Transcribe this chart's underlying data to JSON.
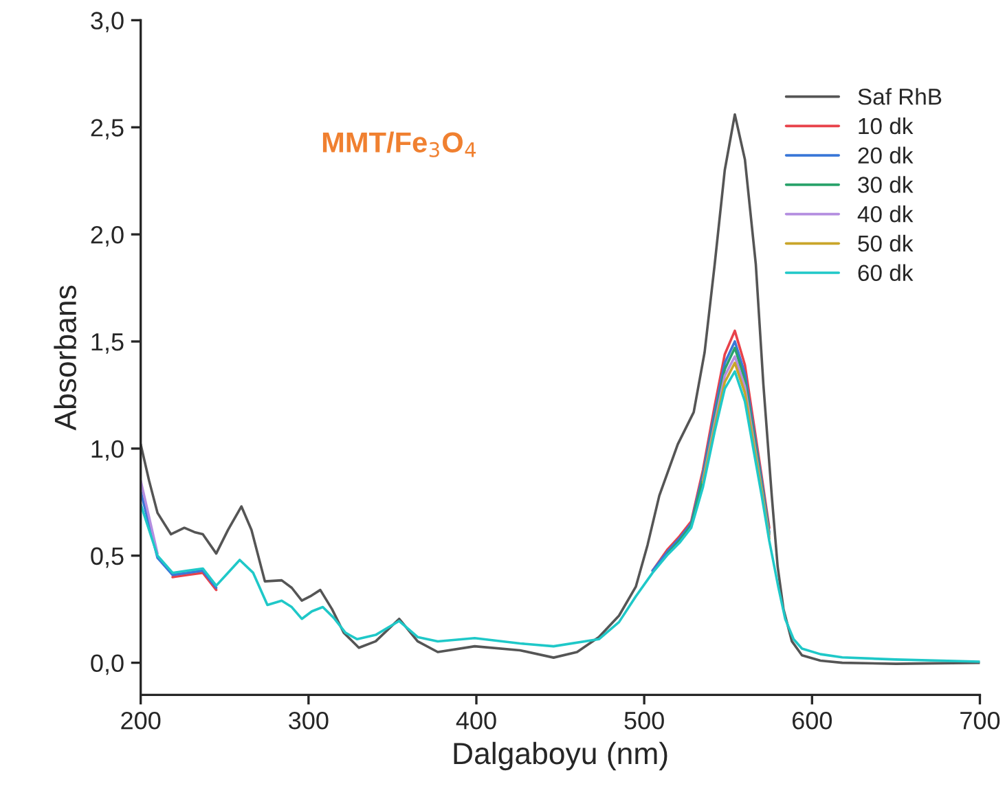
{
  "chart_data": {
    "type": "line",
    "xlabel": "Dalgaboyu (nm)",
    "ylabel": "Absorbans",
    "annotations": [
      "MMT/Fe$_{3}$O$_{4}$"
    ],
    "xlim": [
      200,
      700
    ],
    "xticks": [
      200,
      300,
      400,
      500,
      600,
      700
    ],
    "ylim": [
      -0.15,
      3.0
    ],
    "yticks": [
      {
        "value": 0,
        "label": "0,0"
      },
      {
        "value": 0.5,
        "label": "0,5"
      },
      {
        "value": 1.0,
        "label": "1,0"
      },
      {
        "value": 1.5,
        "label": "1,5"
      },
      {
        "value": 2.0,
        "label": "2,0"
      },
      {
        "value": 2.5,
        "label": "2,5"
      },
      {
        "value": 3.0,
        "label": "3,0"
      }
    ],
    "grid": false,
    "legend": "top right",
    "marker": "none",
    "line_style": "solid",
    "x": [
      200,
      210,
      219,
      228,
      237,
      245,
      252,
      259,
      267,
      275.5,
      284,
      290,
      296,
      302,
      308.5,
      315,
      322,
      329,
      340,
      354,
      365,
      377,
      399,
      426,
      446,
      473,
      485,
      495,
      505,
      514,
      521,
      528,
      535,
      542,
      548,
      554,
      560,
      565,
      570,
      574.5,
      580,
      584,
      589,
      594,
      605,
      618,
      650,
      700
    ],
    "series": [
      {
        "name": "Saf RhB",
        "color": "#555555",
        "x": [
          200,
          205,
          210,
          218,
          226,
          232,
          237,
          245,
          252,
          260,
          266,
          274,
          284,
          290,
          296,
          301,
          307,
          314,
          321,
          330,
          340,
          354,
          365,
          377,
          399,
          426,
          446,
          460,
          473,
          485,
          495,
          502,
          509,
          520,
          529.5,
          536,
          542,
          548,
          554,
          560,
          566.5,
          571,
          576,
          579.5,
          583,
          588,
          594,
          605,
          618,
          650,
          700
        ],
        "values": [
          1.02,
          0.85,
          0.7,
          0.6,
          0.63,
          0.61,
          0.6,
          0.51,
          0.62,
          0.73,
          0.62,
          0.38,
          0.385,
          0.35,
          0.29,
          0.31,
          0.34,
          0.25,
          0.14,
          0.07,
          0.1,
          0.205,
          0.1,
          0.05,
          0.077,
          0.058,
          0.024,
          0.05,
          0.12,
          0.22,
          0.355,
          0.55,
          0.78,
          1.02,
          1.17,
          1.45,
          1.86,
          2.3,
          2.56,
          2.35,
          1.86,
          1.3,
          0.78,
          0.45,
          0.25,
          0.1,
          0.035,
          0.01,
          0.0,
          -0.005,
          0.0
        ]
      },
      {
        "name": "10 dk",
        "color": "#e8424a",
        "values": [
          null,
          null,
          0.4,
          0.41,
          0.42,
          0.34,
          null,
          null,
          null,
          null,
          null,
          null,
          null,
          null,
          null,
          null,
          null,
          null,
          null,
          null,
          null,
          null,
          null,
          null,
          null,
          null,
          null,
          null,
          0.43,
          0.53,
          0.59,
          0.66,
          0.9,
          1.2,
          1.44,
          1.55,
          1.39,
          1.13,
          0.87,
          0.63,
          null,
          null,
          null,
          null,
          null,
          null,
          null,
          null
        ]
      },
      {
        "name": "20 dk",
        "color": "#3a78d8",
        "values": [
          0.8,
          0.49,
          0.41,
          0.42,
          0.43,
          0.35,
          null,
          null,
          null,
          null,
          null,
          null,
          null,
          null,
          null,
          null,
          null,
          null,
          null,
          null,
          null,
          null,
          null,
          null,
          null,
          null,
          null,
          null,
          0.43,
          0.52,
          0.58,
          0.65,
          0.88,
          1.17,
          1.4,
          1.5,
          1.35,
          1.1,
          0.85,
          0.61,
          null,
          null,
          null,
          null,
          null,
          null,
          null,
          null
        ]
      },
      {
        "name": "30 dk",
        "color": "#2aa36b",
        "values": [
          null,
          null,
          null,
          null,
          null,
          null,
          null,
          null,
          null,
          null,
          null,
          null,
          null,
          null,
          null,
          null,
          null,
          null,
          null,
          null,
          null,
          null,
          null,
          null,
          null,
          null,
          null,
          null,
          null,
          0.51,
          0.57,
          0.64,
          0.86,
          1.14,
          1.37,
          1.47,
          1.32,
          1.08,
          0.83,
          0.6,
          null,
          null,
          null,
          null,
          null,
          null,
          null,
          null
        ]
      },
      {
        "name": "40 dk",
        "color": "#b48ee0",
        "values": [
          0.85,
          0.51,
          null,
          null,
          null,
          null,
          null,
          null,
          null,
          null,
          null,
          null,
          null,
          null,
          null,
          null,
          null,
          null,
          null,
          null,
          null,
          null,
          null,
          null,
          null,
          null,
          null,
          null,
          null,
          null,
          null,
          null,
          0.85,
          1.12,
          1.34,
          1.43,
          1.29,
          1.05,
          0.81,
          0.59,
          null,
          null,
          null,
          null,
          null,
          null,
          null,
          null
        ]
      },
      {
        "name": "50 dk",
        "color": "#c9a52a",
        "values": [
          null,
          null,
          null,
          null,
          null,
          null,
          null,
          null,
          null,
          null,
          null,
          null,
          null,
          null,
          null,
          null,
          null,
          null,
          null,
          null,
          null,
          null,
          null,
          null,
          null,
          null,
          null,
          null,
          null,
          null,
          null,
          null,
          0.84,
          1.1,
          1.31,
          1.4,
          1.26,
          1.03,
          0.8,
          0.58,
          null,
          null,
          null,
          null,
          null,
          null,
          null,
          null
        ]
      },
      {
        "name": "60 dk",
        "color": "#1fc8c8",
        "values": [
          0.74,
          0.5,
          0.42,
          0.43,
          0.44,
          0.36,
          0.42,
          0.48,
          0.42,
          0.27,
          0.29,
          0.26,
          0.205,
          0.24,
          0.26,
          0.21,
          0.14,
          0.11,
          0.13,
          0.195,
          0.12,
          0.1,
          0.115,
          0.09,
          0.077,
          0.11,
          0.19,
          0.31,
          0.42,
          0.505,
          0.56,
          0.63,
          0.82,
          1.08,
          1.28,
          1.36,
          1.22,
          1.0,
          0.78,
          0.57,
          0.35,
          0.205,
          0.11,
          0.066,
          0.04,
          0.025,
          0.015,
          0.005
        ]
      }
    ]
  }
}
